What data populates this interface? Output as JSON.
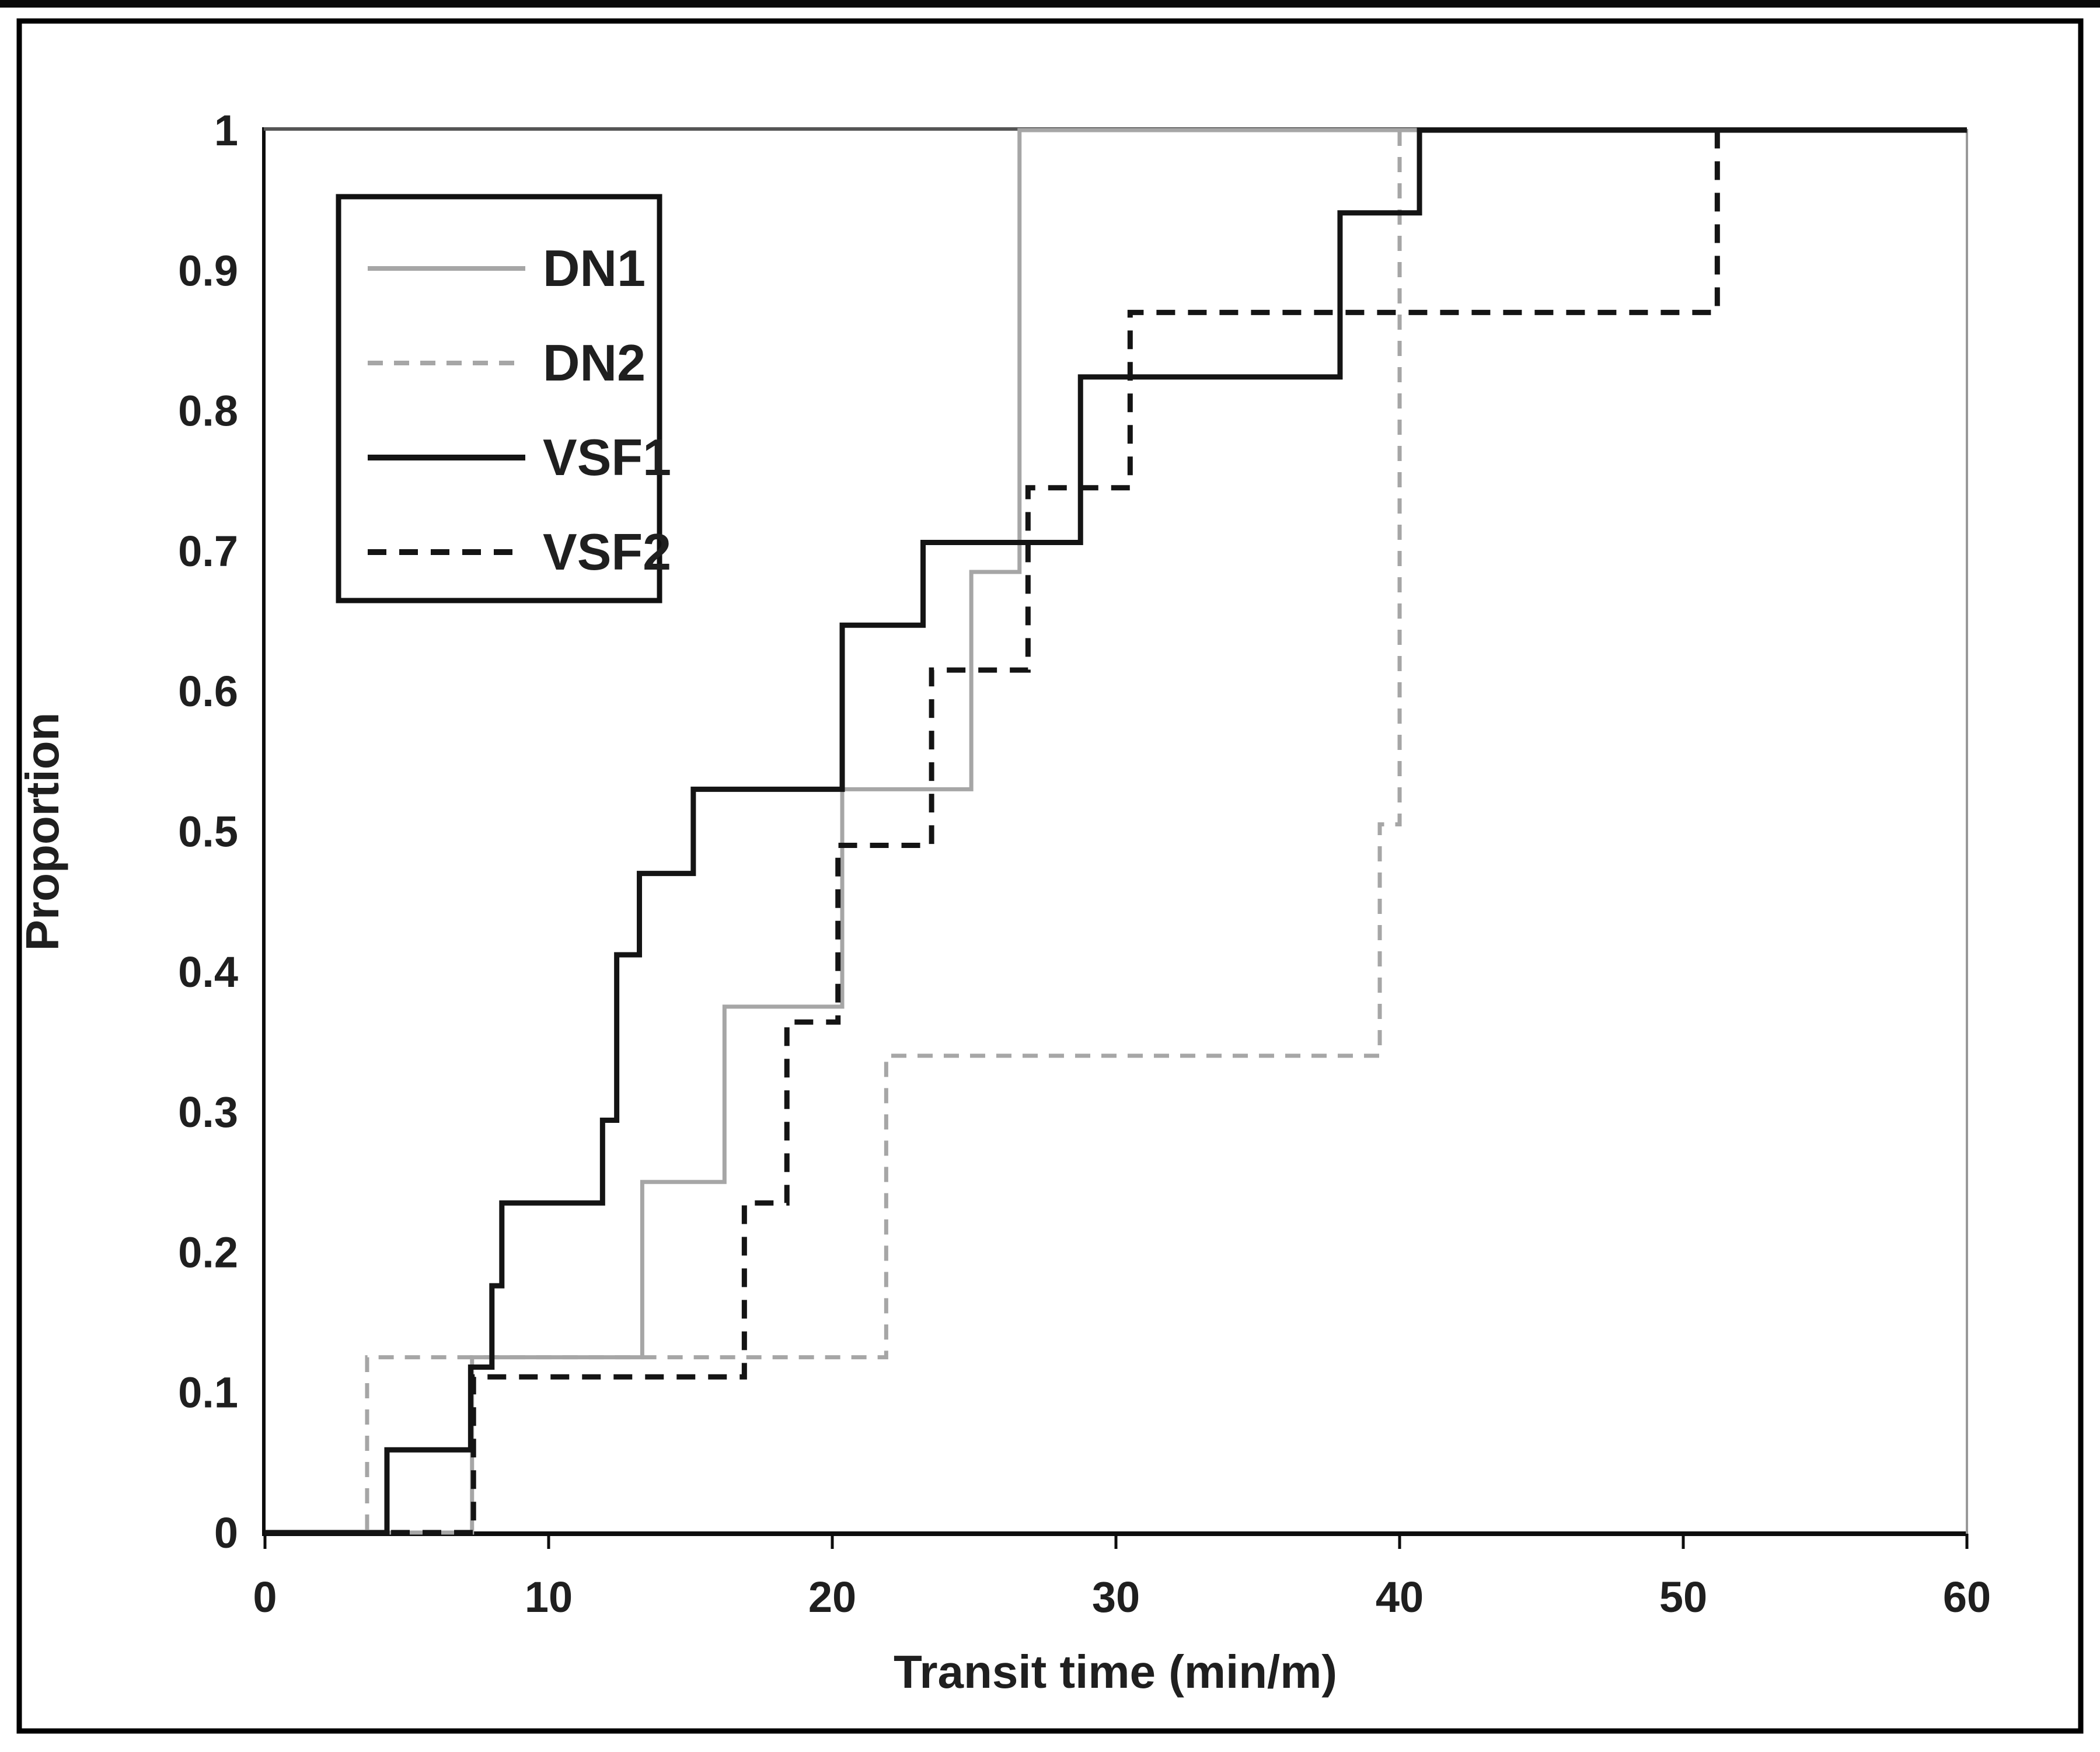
{
  "figure": {
    "background": "#ffffff",
    "outer_border_color": "#000000",
    "top_strip_color": "#0a0a0a"
  },
  "chart_data": {
    "type": "line",
    "subtype": "step-ecdf",
    "title": "",
    "xlabel": "Transit time (min/m)",
    "ylabel": "Proportion",
    "xlim": [
      0,
      60
    ],
    "ylim": [
      0,
      1
    ],
    "grid": false,
    "axis_colors": {
      "left": "#0d0d0d",
      "bottom": "#0d0d0d",
      "top": "#555555",
      "right": "#999999",
      "tick": "#0d0d0d"
    },
    "x_ticks": [
      {
        "value": 0,
        "label": "0"
      },
      {
        "value": 10,
        "label": "10"
      },
      {
        "value": 20,
        "label": "20"
      },
      {
        "value": 30,
        "label": "30"
      },
      {
        "value": 40,
        "label": "40"
      },
      {
        "value": 50,
        "label": "50"
      },
      {
        "value": 60,
        "label": "60"
      }
    ],
    "y_ticks": [
      {
        "value": 0,
        "label": "0"
      },
      {
        "value": 0.1,
        "label": "0.1"
      },
      {
        "value": 0.2,
        "label": "0.2"
      },
      {
        "value": 0.3,
        "label": "0.3"
      },
      {
        "value": 0.4,
        "label": "0.4"
      },
      {
        "value": 0.5,
        "label": "0.5"
      },
      {
        "value": 0.6,
        "label": "0.6"
      },
      {
        "value": 0.7,
        "label": "0.7"
      },
      {
        "value": 0.8,
        "label": "0.8"
      },
      {
        "value": 0.9,
        "label": "0.9"
      },
      {
        "value": 1,
        "label": "1"
      }
    ],
    "series": [
      {
        "name": "DN1",
        "color": "#a6a6a6",
        "dash": "solid",
        "width": 7,
        "steps": [
          [
            7.3,
            0.125
          ],
          [
            13.3,
            0.25
          ],
          [
            16.2,
            0.375
          ],
          [
            20.35,
            0.53
          ],
          [
            24.9,
            0.685
          ],
          [
            26.6,
            1.0
          ]
        ]
      },
      {
        "name": "DN2",
        "color": "#a6a6a6",
        "dash": "dashed",
        "width": 7,
        "steps": [
          [
            3.6,
            0.125
          ],
          [
            21.9,
            0.34
          ],
          [
            39.3,
            0.505
          ],
          [
            40.0,
            1.0
          ]
        ]
      },
      {
        "name": "VSF1",
        "color": "#141414",
        "dash": "solid",
        "width": 9,
        "steps": [
          [
            4.3,
            0.059
          ],
          [
            7.25,
            0.118
          ],
          [
            8.0,
            0.176
          ],
          [
            8.35,
            0.235
          ],
          [
            11.9,
            0.294
          ],
          [
            12.4,
            0.412
          ],
          [
            13.2,
            0.47
          ],
          [
            15.1,
            0.53
          ],
          [
            20.35,
            0.647
          ],
          [
            23.2,
            0.706
          ],
          [
            28.75,
            0.824
          ],
          [
            37.9,
            0.941
          ],
          [
            40.7,
            1.0
          ]
        ]
      },
      {
        "name": "VSF2",
        "color": "#141414",
        "dash": "dashed",
        "width": 9,
        "steps": [
          [
            7.35,
            0.111
          ],
          [
            16.9,
            0.235
          ],
          [
            18.4,
            0.364
          ],
          [
            20.2,
            0.49
          ],
          [
            23.5,
            0.615
          ],
          [
            26.9,
            0.745
          ],
          [
            30.5,
            0.87
          ],
          [
            51.2,
            1.0
          ]
        ]
      }
    ],
    "draw_order": [
      "DN2",
      "DN1",
      "VSF2",
      "VSF1"
    ],
    "legend": {
      "position": "top-left",
      "border": true,
      "entries": [
        "DN1",
        "DN2",
        "VSF1",
        "VSF2"
      ]
    }
  }
}
